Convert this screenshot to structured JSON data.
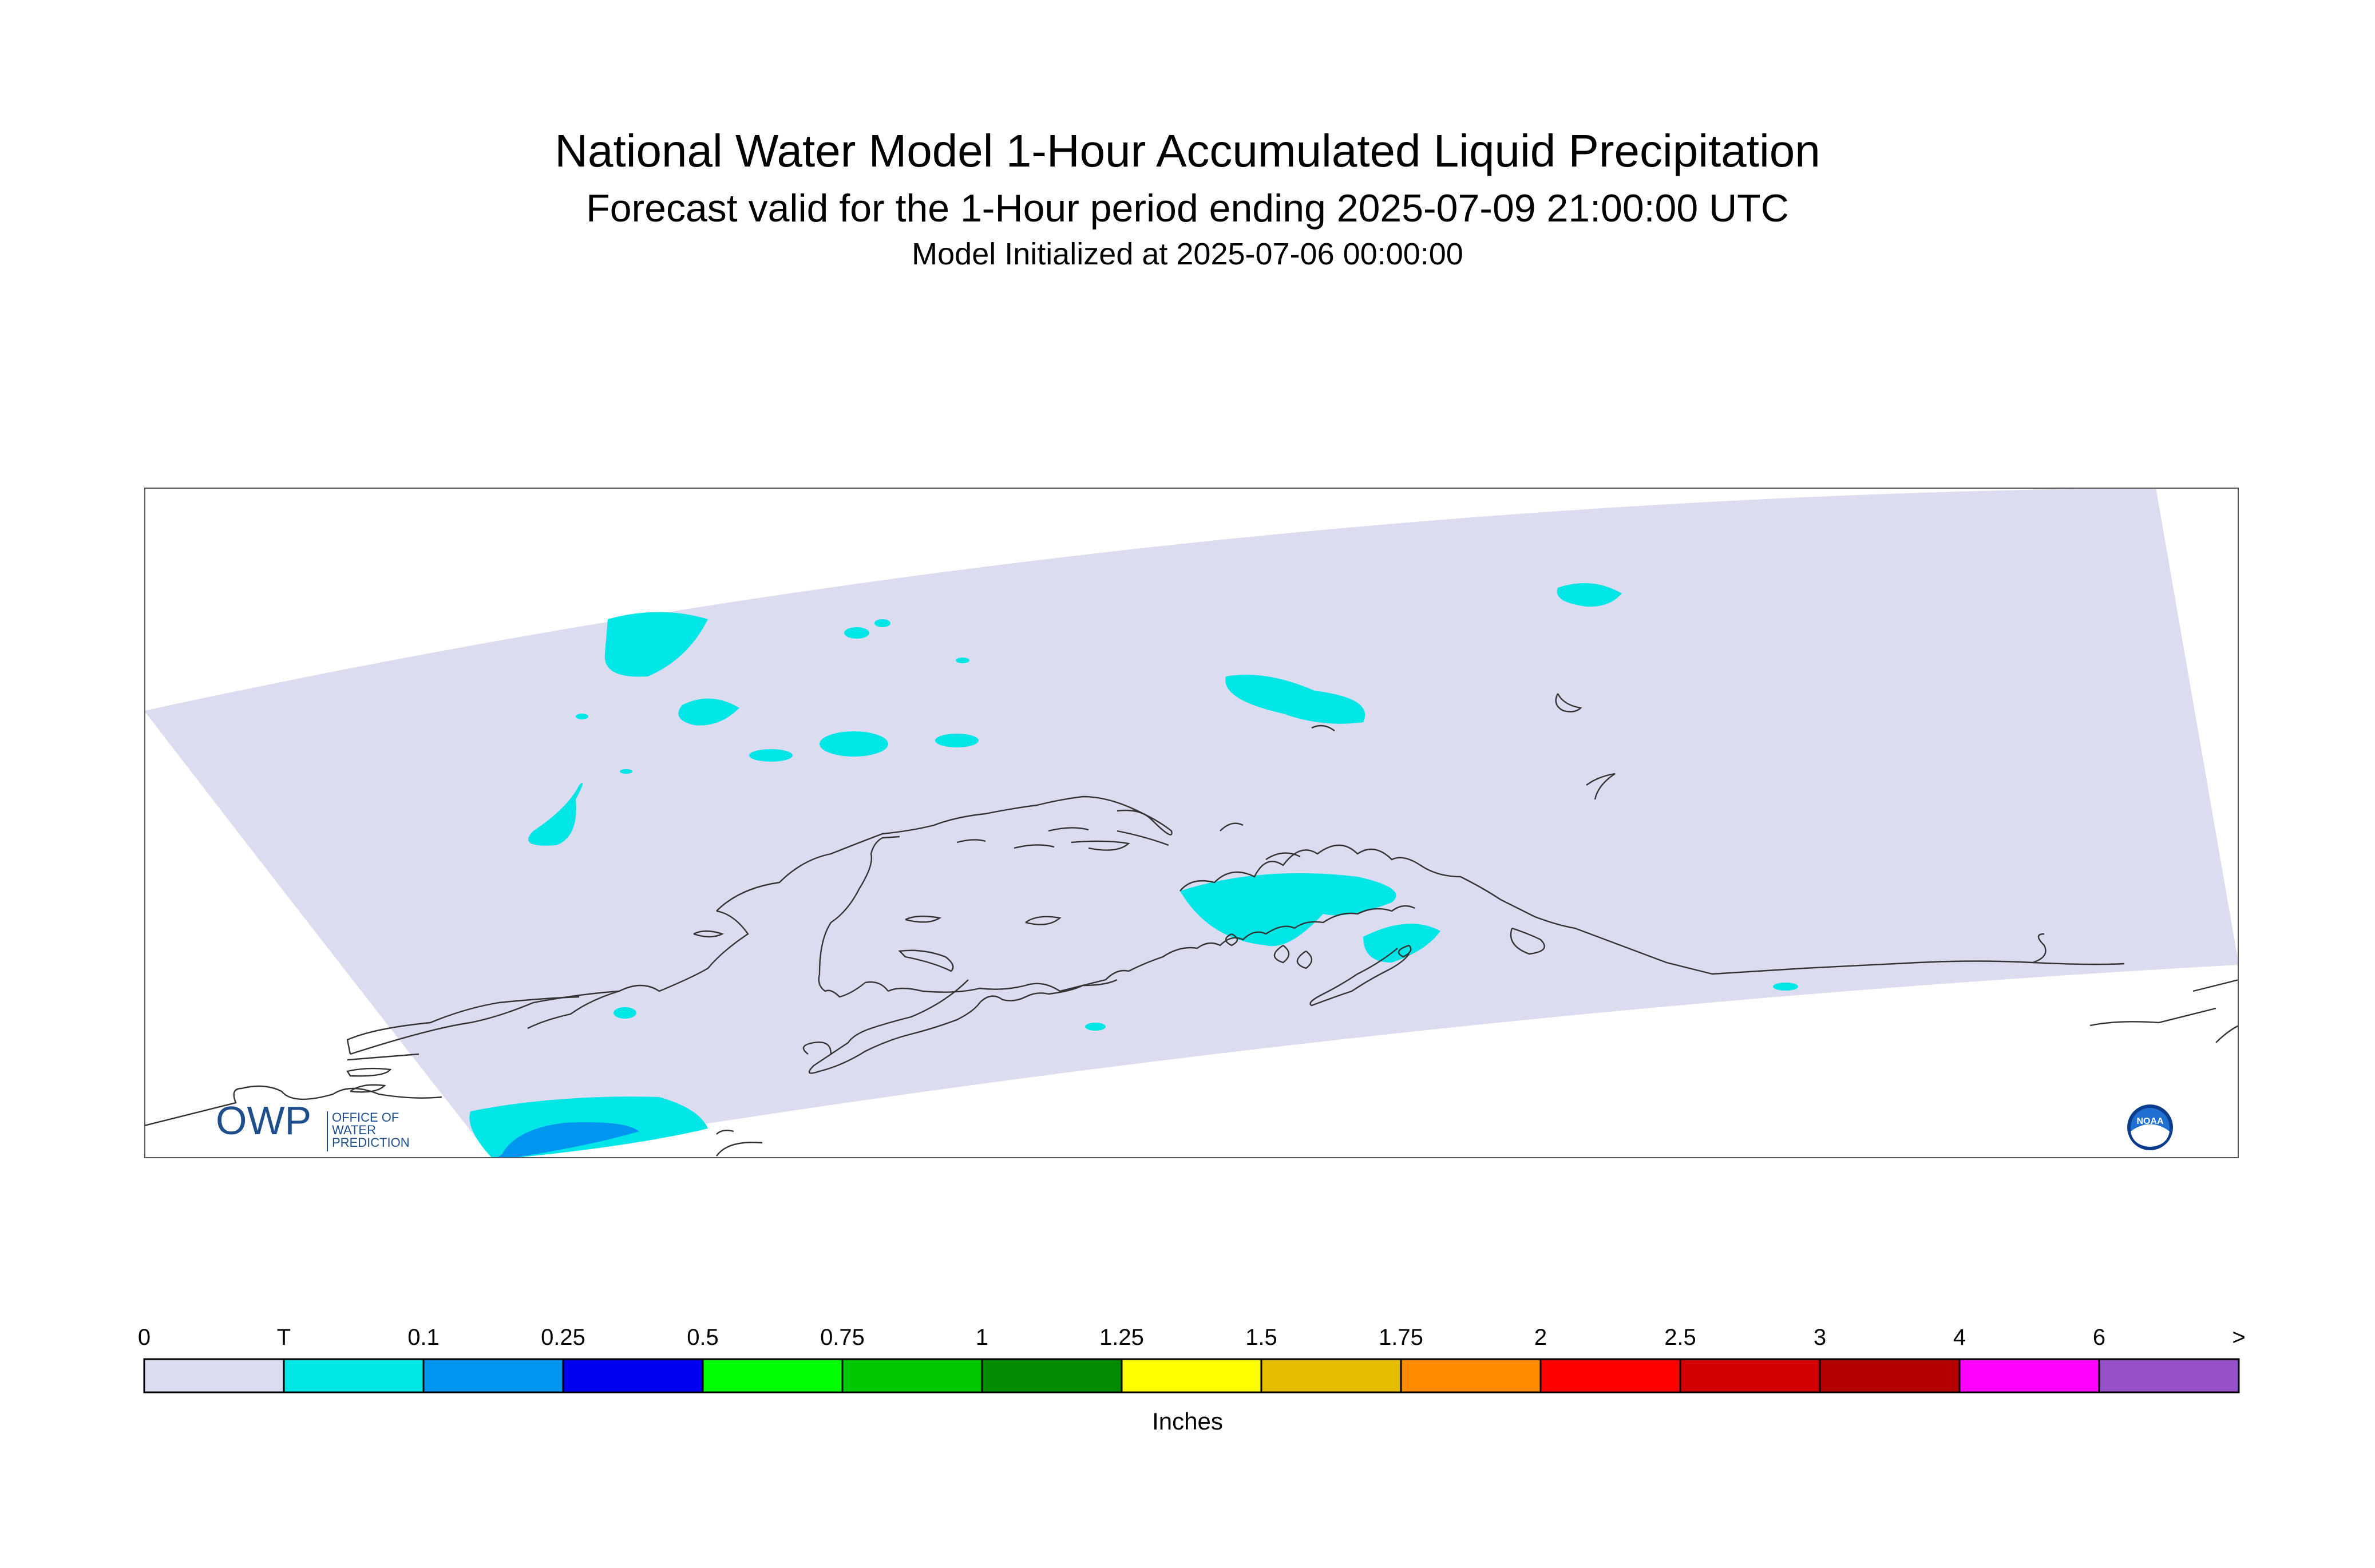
{
  "header": {
    "title": "National Water Model 1-Hour Accumulated Liquid Precipitation",
    "subtitle": "Forecast valid for the 1-Hour period ending 2025-07-09 21:00:00 UTC",
    "init_line": "Model Initialized at 2025-07-06 00:00:00"
  },
  "map": {
    "region_fill": "#dcdcf0",
    "trace_fill": "#00e6e6",
    "light_blue_fill": "#0096f0",
    "coast_color": "#333333"
  },
  "logos": {
    "owp": {
      "mark": "OWP",
      "line1": "OFFICE OF",
      "line2": "WATER",
      "line3": "PREDICTION",
      "color": "#1f4e8c"
    },
    "noaa": {
      "label": "NOAA",
      "icon": "noaa-logo-icon"
    }
  },
  "legend": {
    "unit_label": "Inches",
    "labels": [
      "0",
      "T",
      "0.1",
      "0.25",
      "0.5",
      "0.75",
      "1",
      "1.25",
      "1.5",
      "1.75",
      "2",
      "2.5",
      "3",
      "4",
      "6",
      ">"
    ],
    "colors": [
      "#dcdcf0",
      "#00e6e6",
      "#0096f0",
      "#0000f0",
      "#00ff00",
      "#00c800",
      "#008c00",
      "#ffff00",
      "#e6be00",
      "#ff8c00",
      "#ff0000",
      "#d20000",
      "#b40000",
      "#ff00ff",
      "#9650c8"
    ]
  }
}
